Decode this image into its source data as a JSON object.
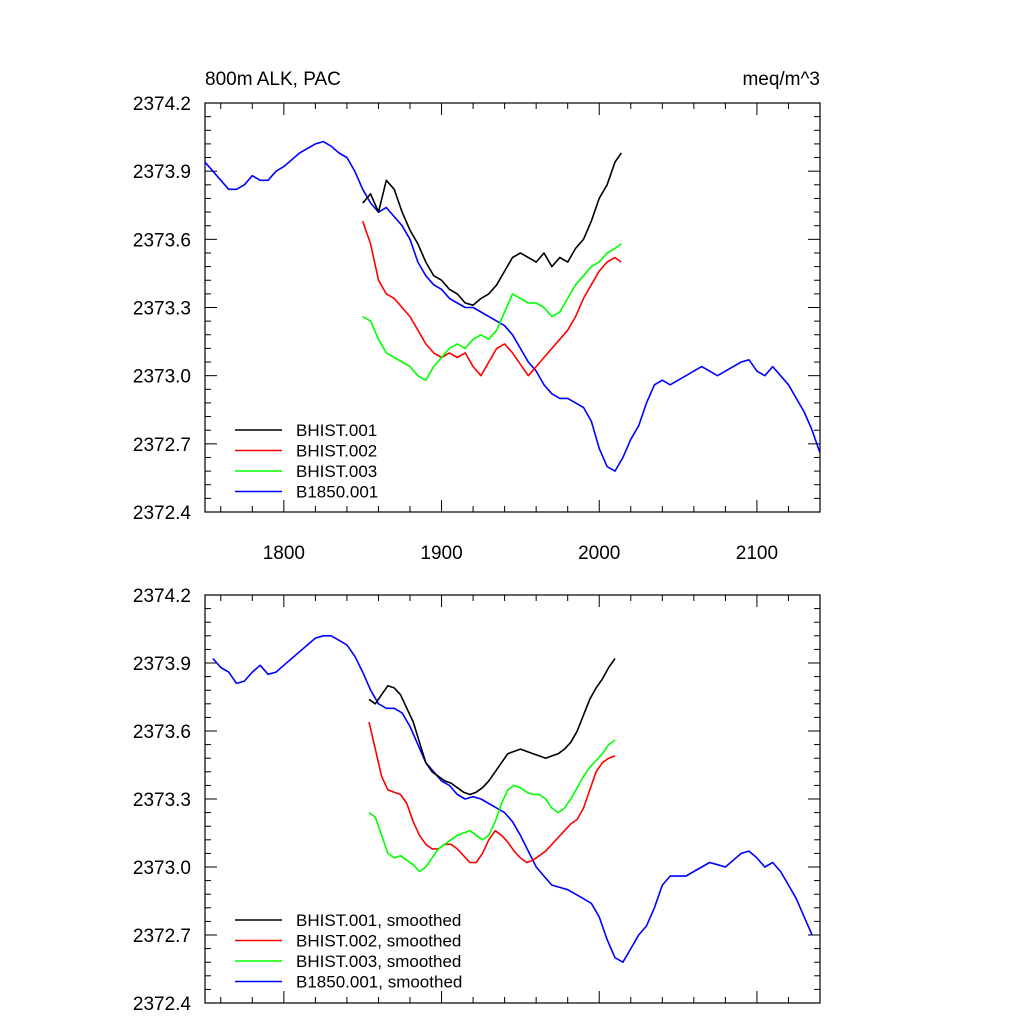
{
  "figure": {
    "title_left": "800m ALK, PAC",
    "title_right": "meq/m^3"
  },
  "chart_data": [
    {
      "type": "line",
      "title": "800m ALK, PAC",
      "units": "meq/m^3",
      "xlim": [
        1750,
        2140
      ],
      "ylim": [
        2372.4,
        2374.2
      ],
      "x_ticks": [
        1800,
        1900,
        2000,
        2100
      ],
      "x_tick_labels": [
        "1800",
        "1900",
        "2000",
        "2100"
      ],
      "y_ticks": [
        2372.4,
        2372.7,
        2373.0,
        2373.3,
        2373.6,
        2373.9,
        2374.2
      ],
      "y_tick_labels": [
        "2372.4",
        "2372.7",
        "2373.0",
        "2373.3",
        "2373.6",
        "2373.9",
        "2374.2"
      ],
      "legend_position": "bottom-left",
      "series": [
        {
          "name": "BHIST.001",
          "color": "#000000",
          "x": [
            1850,
            1855,
            1860,
            1865,
            1870,
            1875,
            1880,
            1885,
            1890,
            1895,
            1900,
            1905,
            1910,
            1915,
            1920,
            1925,
            1930,
            1935,
            1940,
            1945,
            1950,
            1955,
            1960,
            1965,
            1970,
            1975,
            1980,
            1985,
            1990,
            1995,
            2000,
            2005,
            2010,
            2014
          ],
          "y": [
            2373.76,
            2373.8,
            2373.72,
            2373.86,
            2373.82,
            2373.72,
            2373.64,
            2373.58,
            2373.5,
            2373.44,
            2373.42,
            2373.38,
            2373.36,
            2373.32,
            2373.31,
            2373.34,
            2373.36,
            2373.4,
            2373.46,
            2373.52,
            2373.54,
            2373.52,
            2373.5,
            2373.54,
            2373.48,
            2373.52,
            2373.5,
            2373.56,
            2373.6,
            2373.68,
            2373.78,
            2373.84,
            2373.94,
            2373.98
          ]
        },
        {
          "name": "BHIST.002",
          "color": "#ff0000",
          "x": [
            1850,
            1855,
            1860,
            1865,
            1870,
            1875,
            1880,
            1885,
            1890,
            1895,
            1900,
            1905,
            1910,
            1915,
            1920,
            1925,
            1930,
            1935,
            1940,
            1945,
            1950,
            1955,
            1960,
            1965,
            1970,
            1975,
            1980,
            1985,
            1990,
            1995,
            2000,
            2005,
            2010,
            2014
          ],
          "y": [
            2373.68,
            2373.58,
            2373.42,
            2373.36,
            2373.34,
            2373.3,
            2373.26,
            2373.2,
            2373.14,
            2373.1,
            2373.08,
            2373.1,
            2373.08,
            2373.1,
            2373.04,
            2373.0,
            2373.06,
            2373.12,
            2373.14,
            2373.1,
            2373.05,
            2373.0,
            2373.04,
            2373.08,
            2373.12,
            2373.16,
            2373.2,
            2373.26,
            2373.34,
            2373.4,
            2373.46,
            2373.5,
            2373.52,
            2373.5
          ]
        },
        {
          "name": "BHIST.003",
          "color": "#00ff00",
          "x": [
            1850,
            1855,
            1860,
            1865,
            1870,
            1875,
            1880,
            1885,
            1890,
            1895,
            1900,
            1905,
            1910,
            1915,
            1920,
            1925,
            1930,
            1935,
            1940,
            1945,
            1950,
            1955,
            1960,
            1965,
            1970,
            1975,
            1980,
            1985,
            1990,
            1995,
            2000,
            2005,
            2010,
            2014
          ],
          "y": [
            2373.26,
            2373.24,
            2373.16,
            2373.1,
            2373.08,
            2373.06,
            2373.04,
            2373.0,
            2372.98,
            2373.04,
            2373.08,
            2373.12,
            2373.14,
            2373.12,
            2373.16,
            2373.18,
            2373.16,
            2373.2,
            2373.28,
            2373.36,
            2373.34,
            2373.32,
            2373.32,
            2373.3,
            2373.26,
            2373.28,
            2373.34,
            2373.4,
            2373.44,
            2373.48,
            2373.5,
            2373.54,
            2373.56,
            2373.58
          ]
        },
        {
          "name": "B1850.001",
          "color": "#0000ff",
          "x": [
            1750,
            1755,
            1760,
            1765,
            1770,
            1775,
            1780,
            1785,
            1790,
            1795,
            1800,
            1805,
            1810,
            1815,
            1820,
            1825,
            1830,
            1835,
            1840,
            1845,
            1850,
            1855,
            1860,
            1865,
            1870,
            1875,
            1880,
            1885,
            1890,
            1895,
            1900,
            1905,
            1910,
            1915,
            1920,
            1925,
            1930,
            1935,
            1940,
            1945,
            1950,
            1955,
            1960,
            1965,
            1970,
            1975,
            1980,
            1985,
            1990,
            1995,
            2000,
            2005,
            2010,
            2015,
            2020,
            2025,
            2030,
            2035,
            2040,
            2045,
            2050,
            2055,
            2060,
            2065,
            2070,
            2075,
            2080,
            2085,
            2090,
            2095,
            2100,
            2105,
            2110,
            2115,
            2120,
            2125,
            2130,
            2135,
            2140
          ],
          "y": [
            2373.94,
            2373.9,
            2373.86,
            2373.82,
            2373.82,
            2373.84,
            2373.88,
            2373.86,
            2373.86,
            2373.9,
            2373.92,
            2373.95,
            2373.98,
            2374.0,
            2374.02,
            2374.03,
            2374.01,
            2373.98,
            2373.96,
            2373.9,
            2373.82,
            2373.76,
            2373.72,
            2373.74,
            2373.7,
            2373.66,
            2373.6,
            2373.5,
            2373.44,
            2373.4,
            2373.38,
            2373.34,
            2373.32,
            2373.3,
            2373.3,
            2373.28,
            2373.26,
            2373.24,
            2373.22,
            2373.18,
            2373.12,
            2373.06,
            2373.02,
            2372.96,
            2372.92,
            2372.9,
            2372.9,
            2372.88,
            2372.86,
            2372.8,
            2372.68,
            2372.6,
            2372.58,
            2372.64,
            2372.72,
            2372.78,
            2372.88,
            2372.96,
            2372.98,
            2372.96,
            2372.98,
            2373.0,
            2373.02,
            2373.04,
            2373.02,
            2373.0,
            2373.02,
            2373.04,
            2373.06,
            2373.07,
            2373.02,
            2373.0,
            2373.04,
            2373.0,
            2372.96,
            2372.9,
            2372.84,
            2372.76,
            2372.66
          ]
        }
      ]
    },
    {
      "type": "line",
      "xlim": [
        1750,
        2140
      ],
      "ylim": [
        2372.4,
        2374.2
      ],
      "x_ticks": [
        1800,
        1900,
        2000,
        2100
      ],
      "y_ticks": [
        2372.4,
        2372.7,
        2373.0,
        2373.3,
        2373.6,
        2373.9,
        2374.2
      ],
      "y_tick_labels": [
        "2372.4",
        "2372.7",
        "2373.0",
        "2373.3",
        "2373.6",
        "2373.9",
        "2374.2"
      ],
      "legend_position": "bottom-left",
      "series": [
        {
          "name": "BHIST.001, smoothed",
          "color": "#000000",
          "x": [
            1854,
            1858,
            1862,
            1866,
            1870,
            1874,
            1878,
            1882,
            1886,
            1890,
            1894,
            1898,
            1902,
            1906,
            1910,
            1914,
            1918,
            1922,
            1926,
            1930,
            1934,
            1938,
            1942,
            1946,
            1950,
            1954,
            1958,
            1962,
            1966,
            1970,
            1974,
            1978,
            1982,
            1986,
            1990,
            1994,
            1998,
            2002,
            2006,
            2010
          ],
          "y": [
            2373.74,
            2373.72,
            2373.76,
            2373.8,
            2373.79,
            2373.76,
            2373.7,
            2373.64,
            2373.55,
            2373.46,
            2373.42,
            2373.4,
            2373.38,
            2373.37,
            2373.35,
            2373.33,
            2373.32,
            2373.33,
            2373.35,
            2373.38,
            2373.42,
            2373.46,
            2373.5,
            2373.51,
            2373.52,
            2373.51,
            2373.5,
            2373.49,
            2373.48,
            2373.49,
            2373.5,
            2373.52,
            2373.55,
            2373.6,
            2373.67,
            2373.74,
            2373.79,
            2373.83,
            2373.88,
            2373.92
          ]
        },
        {
          "name": "BHIST.002, smoothed",
          "color": "#ff0000",
          "x": [
            1854,
            1858,
            1862,
            1866,
            1870,
            1874,
            1878,
            1882,
            1886,
            1890,
            1894,
            1898,
            1902,
            1906,
            1910,
            1914,
            1918,
            1922,
            1926,
            1930,
            1934,
            1938,
            1942,
            1946,
            1950,
            1954,
            1958,
            1962,
            1966,
            1970,
            1974,
            1978,
            1982,
            1986,
            1990,
            1994,
            1998,
            2002,
            2006,
            2010
          ],
          "y": [
            2373.64,
            2373.52,
            2373.4,
            2373.34,
            2373.33,
            2373.32,
            2373.28,
            2373.2,
            2373.14,
            2373.1,
            2373.08,
            2373.08,
            2373.1,
            2373.1,
            2373.08,
            2373.05,
            2373.02,
            2373.02,
            2373.06,
            2373.12,
            2373.16,
            2373.14,
            2373.11,
            2373.07,
            2373.04,
            2373.02,
            2373.03,
            2373.05,
            2373.07,
            2373.1,
            2373.13,
            2373.16,
            2373.19,
            2373.21,
            2373.26,
            2373.34,
            2373.42,
            2373.46,
            2373.48,
            2373.49
          ]
        },
        {
          "name": "BHIST.003, smoothed",
          "color": "#00ff00",
          "x": [
            1854,
            1858,
            1862,
            1866,
            1870,
            1874,
            1878,
            1882,
            1886,
            1890,
            1894,
            1898,
            1902,
            1906,
            1910,
            1914,
            1918,
            1922,
            1926,
            1930,
            1934,
            1938,
            1942,
            1946,
            1950,
            1954,
            1958,
            1962,
            1966,
            1970,
            1974,
            1978,
            1982,
            1986,
            1990,
            1994,
            1998,
            2002,
            2006,
            2010
          ],
          "y": [
            2373.24,
            2373.22,
            2373.14,
            2373.06,
            2373.04,
            2373.05,
            2373.03,
            2373.01,
            2372.98,
            2373.0,
            2373.04,
            2373.08,
            2373.1,
            2373.12,
            2373.14,
            2373.15,
            2373.16,
            2373.14,
            2373.12,
            2373.14,
            2373.2,
            2373.28,
            2373.34,
            2373.36,
            2373.35,
            2373.33,
            2373.32,
            2373.32,
            2373.3,
            2373.26,
            2373.24,
            2373.26,
            2373.3,
            2373.35,
            2373.4,
            2373.44,
            2373.47,
            2373.5,
            2373.54,
            2373.56
          ]
        },
        {
          "name": "B1850.001, smoothed",
          "color": "#0000ff",
          "x": [
            1755,
            1760,
            1765,
            1770,
            1775,
            1780,
            1785,
            1790,
            1795,
            1800,
            1805,
            1810,
            1815,
            1820,
            1825,
            1830,
            1835,
            1840,
            1845,
            1850,
            1855,
            1860,
            1865,
            1870,
            1875,
            1880,
            1885,
            1890,
            1895,
            1900,
            1905,
            1910,
            1915,
            1920,
            1925,
            1930,
            1935,
            1940,
            1945,
            1950,
            1955,
            1960,
            1965,
            1970,
            1975,
            1980,
            1985,
            1990,
            1995,
            2000,
            2005,
            2010,
            2015,
            2020,
            2025,
            2030,
            2035,
            2040,
            2045,
            2050,
            2055,
            2060,
            2065,
            2070,
            2075,
            2080,
            2085,
            2090,
            2095,
            2100,
            2105,
            2110,
            2115,
            2120,
            2125,
            2130,
            2135
          ],
          "y": [
            2373.92,
            2373.88,
            2373.86,
            2373.81,
            2373.82,
            2373.86,
            2373.89,
            2373.85,
            2373.86,
            2373.89,
            2373.92,
            2373.95,
            2373.98,
            2374.01,
            2374.02,
            2374.02,
            2374.0,
            2373.98,
            2373.93,
            2373.86,
            2373.78,
            2373.72,
            2373.7,
            2373.7,
            2373.68,
            2373.62,
            2373.54,
            2373.46,
            2373.42,
            2373.38,
            2373.36,
            2373.32,
            2373.3,
            2373.31,
            2373.3,
            2373.28,
            2373.26,
            2373.24,
            2373.2,
            2373.14,
            2373.07,
            2373.0,
            2372.96,
            2372.92,
            2372.91,
            2372.9,
            2372.88,
            2372.86,
            2372.84,
            2372.78,
            2372.68,
            2372.6,
            2372.58,
            2372.64,
            2372.7,
            2372.74,
            2372.82,
            2372.92,
            2372.96,
            2372.96,
            2372.96,
            2372.98,
            2373.0,
            2373.02,
            2373.01,
            2373.0,
            2373.03,
            2373.06,
            2373.07,
            2373.04,
            2373.0,
            2373.02,
            2372.98,
            2372.92,
            2372.86,
            2372.78,
            2372.7
          ]
        }
      ]
    }
  ]
}
